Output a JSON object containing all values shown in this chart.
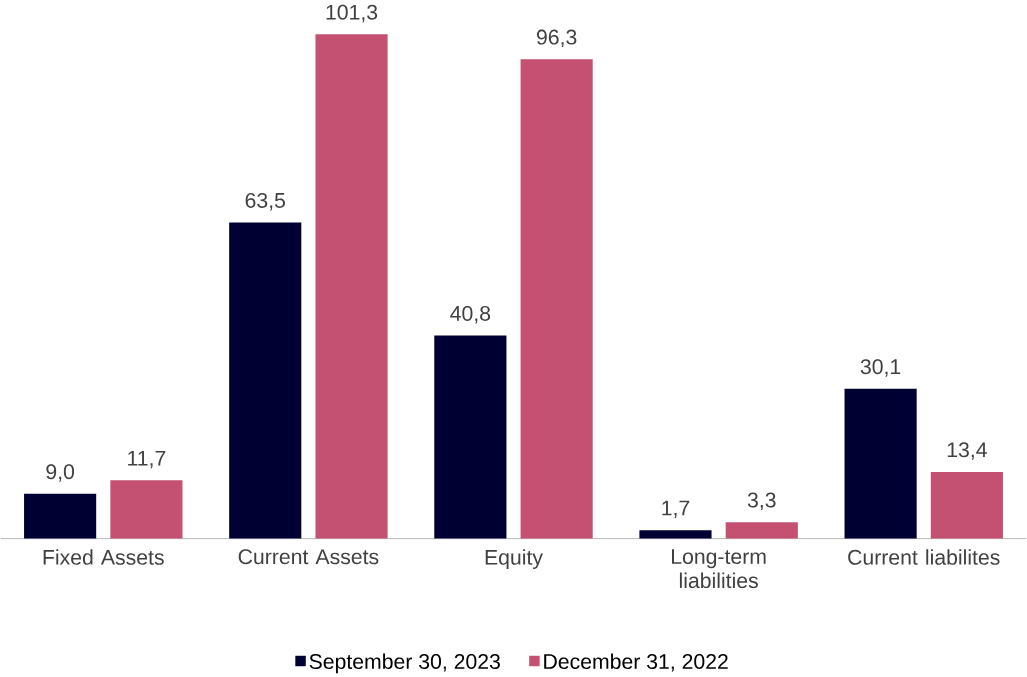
{
  "chart_data": {
    "type": "bar",
    "categories": [
      "Fixed Assets",
      "Current Assets",
      "Equity",
      "Long-term liabilities",
      "Current liabilites"
    ],
    "series": [
      {
        "name": "September 30, 2023",
        "color": "#000033",
        "values": [
          9.0,
          63.5,
          40.8,
          1.7,
          30.1
        ],
        "value_labels": [
          "9,0",
          "63,5",
          "40,8",
          "1,7",
          "30,1"
        ]
      },
      {
        "name": "December 31, 2022",
        "color": "#c45172",
        "values": [
          11.7,
          101.3,
          96.3,
          3.3,
          13.4
        ],
        "value_labels": [
          "11,7",
          "101,3",
          "96,3",
          "3,3",
          "13,4"
        ]
      }
    ],
    "legend": "bottom"
  }
}
